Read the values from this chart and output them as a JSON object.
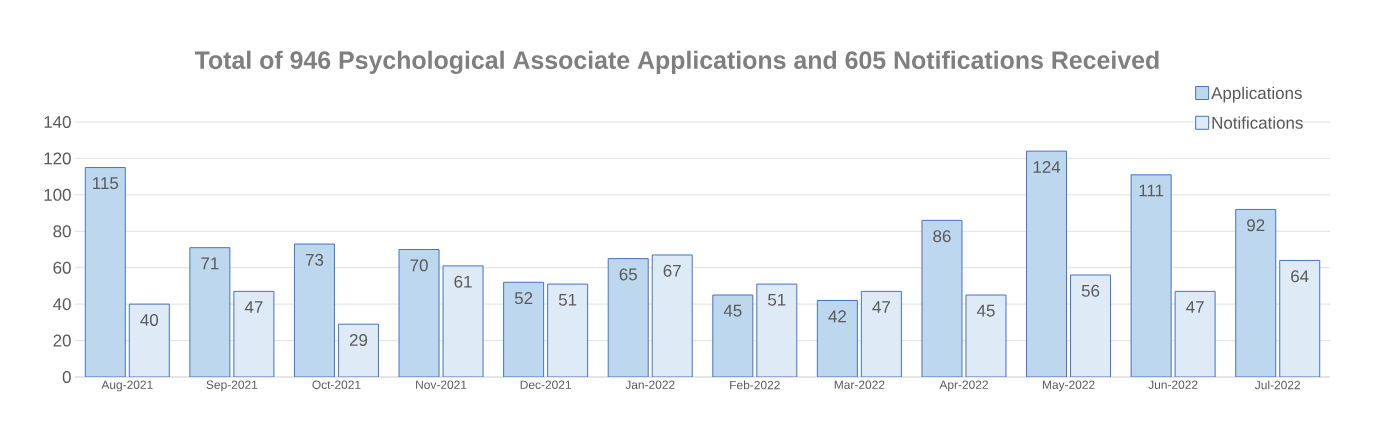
{
  "chart_data": {
    "type": "bar",
    "title": "Total of 946 Psychological Associate Applications and 605 Notifications Received",
    "categories": [
      "Aug-2021",
      "Sep-2021",
      "Oct-2021",
      "Nov-2021",
      "Dec-2021",
      "Jan-2022",
      "Feb-2022",
      "Mar-2022",
      "Apr-2022",
      "May-2022",
      "Jun-2022",
      "Jul-2022"
    ],
    "series": [
      {
        "name": "Applications",
        "color": "#bdd7ee",
        "values": [
          115,
          71,
          73,
          70,
          52,
          65,
          45,
          42,
          86,
          124,
          111,
          92
        ]
      },
      {
        "name": "Notifications",
        "color": "#deebf7",
        "values": [
          40,
          47,
          29,
          61,
          51,
          67,
          51,
          47,
          45,
          56,
          47,
          64
        ]
      }
    ],
    "ylim": [
      0,
      140
    ],
    "yticks": [
      0,
      20,
      40,
      60,
      80,
      100,
      120,
      140
    ],
    "grid": "y",
    "legend": "top right",
    "data_labels": true
  }
}
